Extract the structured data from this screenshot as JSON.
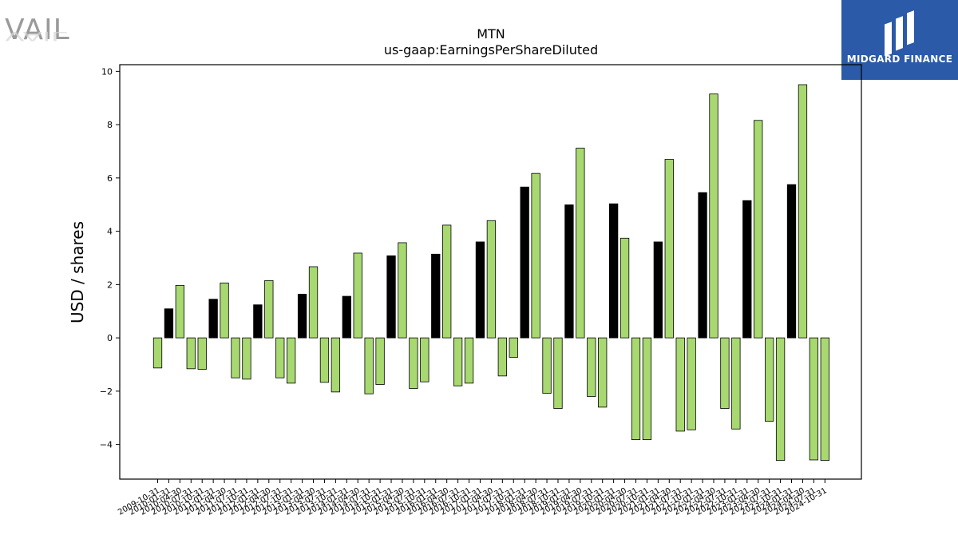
{
  "logos": {
    "vail": "VAIL",
    "midgard": "MIDGARD FINANCE"
  },
  "chart_data": {
    "type": "bar",
    "title": "MTN",
    "subtitle": "us-gaap:EarningsPerShareDiluted",
    "xlabel": "",
    "ylabel": "USD / shares",
    "ylim": [
      -5.3,
      10.25
    ],
    "yticks": [
      -4,
      -2,
      0,
      2,
      4,
      6,
      8,
      10
    ],
    "grid": false,
    "colors": {
      "quarter": "#a8d870",
      "annual": "#000000",
      "edge": "#000000"
    },
    "categories": [
      "2009-10-31",
      "2010-01-31",
      "2010-04-30",
      "2010-07-31",
      "2010-10-31",
      "2011-01-31",
      "2011-04-30",
      "2011-07-31",
      "2011-10-31",
      "2012-01-31",
      "2012-04-30",
      "2012-07-31",
      "2012-10-31",
      "2013-01-31",
      "2013-04-30",
      "2013-07-31",
      "2013-10-31",
      "2014-01-31",
      "2014-04-30",
      "2014-07-31",
      "2014-10-31",
      "2015-01-31",
      "2015-04-30",
      "2015-07-31",
      "2015-10-31",
      "2016-01-31",
      "2016-04-30",
      "2016-07-31",
      "2016-10-31",
      "2017-01-31",
      "2017-04-30",
      "2017-07-31",
      "2017-10-31",
      "2018-01-31",
      "2018-04-30",
      "2018-07-31",
      "2018-10-31",
      "2019-01-31",
      "2019-04-30",
      "2019-07-31",
      "2019-10-31",
      "2020-01-31",
      "2020-04-30",
      "2020-07-31",
      "2020-10-31",
      "2021-01-31",
      "2021-04-30",
      "2021-07-31",
      "2021-10-31",
      "2022-01-31",
      "2022-04-30",
      "2022-07-31",
      "2022-10-31",
      "2023-01-31",
      "2023-04-30",
      "2023-07-31",
      "2023-10-31",
      "2024-01-31",
      "2024-04-30",
      "2024-07-31",
      "2024-10-31"
    ],
    "values": [
      -1.13,
      1.09,
      1.97,
      -1.16,
      -1.18,
      1.45,
      2.06,
      -1.5,
      -1.55,
      1.24,
      2.15,
      -1.5,
      -1.7,
      1.64,
      2.67,
      -1.67,
      -2.03,
      1.56,
      3.18,
      -2.1,
      -1.75,
      3.08,
      3.57,
      -1.9,
      -1.65,
      3.14,
      4.23,
      -1.8,
      -1.7,
      3.6,
      4.4,
      -1.43,
      -0.73,
      5.66,
      6.17,
      -2.08,
      -2.65,
      4.99,
      7.12,
      -2.2,
      -2.6,
      5.03,
      3.74,
      -3.82,
      -3.82,
      3.6,
      6.7,
      -3.5,
      -3.45,
      5.45,
      9.15,
      -2.65,
      -3.42,
      5.15,
      8.16,
      -3.13,
      -4.6,
      5.75,
      9.5,
      -4.58,
      -4.6
    ],
    "bar_kind": [
      "q",
      "a",
      "q",
      "q",
      "q",
      "a",
      "q",
      "q",
      "q",
      "a",
      "q",
      "q",
      "q",
      "a",
      "q",
      "q",
      "q",
      "a",
      "q",
      "q",
      "q",
      "a",
      "q",
      "q",
      "q",
      "a",
      "q",
      "q",
      "q",
      "a",
      "q",
      "q",
      "q",
      "a",
      "q",
      "q",
      "q",
      "a",
      "q",
      "q",
      "q",
      "a",
      "q",
      "q",
      "q",
      "a",
      "q",
      "q",
      "q",
      "a",
      "q",
      "q",
      "q",
      "a",
      "q",
      "q",
      "q",
      "a",
      "q",
      "q",
      "q"
    ]
  }
}
